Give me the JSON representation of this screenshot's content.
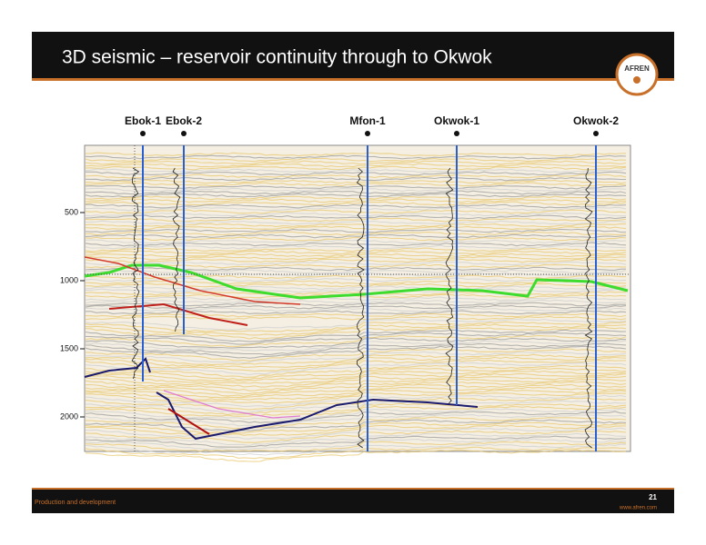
{
  "header": {
    "title": "3D seismic – reservoir continuity through to Okwok",
    "logo": "AFREN"
  },
  "seismic": {
    "wells": [
      "Ebok-1",
      "Ebok-2",
      "Mfon-1",
      "Okwok-1",
      "Okwok-2"
    ],
    "depth_labels": [
      500,
      1000,
      1500,
      2000
    ]
  },
  "footer": {
    "section": "Production and development",
    "page": "21",
    "website": "www.afren.com"
  }
}
